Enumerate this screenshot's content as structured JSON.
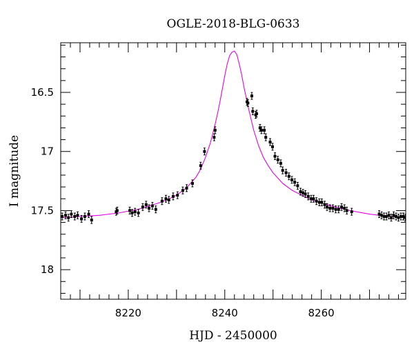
{
  "chart_data": {
    "type": "scatter",
    "title": "OGLE-2018-BLG-0633",
    "xlabel": "HJD - 2450000",
    "ylabel": "I magnitude",
    "xlim": [
      8206,
      8277.5
    ],
    "ylim": [
      18.25,
      16.08
    ],
    "y_inverted": true,
    "grid": false,
    "xticks": [
      8220,
      8240,
      8260
    ],
    "yticks": [
      16.5,
      17,
      17.5,
      18
    ],
    "ytick_labels": [
      "16.5",
      "17",
      "17.5",
      "18"
    ],
    "colors": {
      "points": "#000000",
      "model": "#e600e6",
      "axes": "#000000"
    },
    "series": [
      {
        "kind": "points",
        "x": [
          8206.3,
          8207.0,
          8207.6,
          8208.2,
          8208.9,
          8209.5,
          8210.3,
          8211.0,
          8211.8,
          8212.4,
          8217.5,
          8217.7,
          8220.3,
          8220.8,
          8221.4,
          8222.1,
          8223.0,
          8223.7,
          8224.3,
          8225.0,
          8225.7,
          8227.0,
          8227.8,
          8228.4,
          8229.3,
          8230.2,
          8231.3,
          8232.1,
          8233.3,
          8235.0,
          8235.8,
          8237.8,
          8238.0,
          8244.6,
          8244.8,
          8245.6,
          8245.8,
          8246.4,
          8246.6,
          8247.3,
          8247.6,
          8248.2,
          8248.5,
          8249.4,
          8249.9,
          8250.4,
          8251.0,
          8251.6,
          8252.0,
          8252.7,
          8253.3,
          8253.9,
          8254.5,
          8255.1,
          8255.7,
          8256.2,
          8256.7,
          8257.3,
          8257.9,
          8258.4,
          8259.0,
          8259.6,
          8260.1,
          8260.7,
          8261.2,
          8261.8,
          8262.4,
          8263.0,
          8263.6,
          8264.2,
          8264.8,
          8265.3,
          8266.3,
          8272.0,
          8272.5,
          8273.0,
          8273.5,
          8274.0,
          8274.5,
          8275.0,
          8275.5,
          8276.0,
          8276.5,
          8277.0,
          8277.4
        ],
        "y": [
          17.55,
          17.54,
          17.56,
          17.53,
          17.55,
          17.54,
          17.57,
          17.55,
          17.53,
          17.58,
          17.51,
          17.5,
          17.5,
          17.52,
          17.51,
          17.52,
          17.47,
          17.45,
          17.48,
          17.46,
          17.49,
          17.42,
          17.4,
          17.41,
          17.38,
          17.37,
          17.33,
          17.31,
          17.27,
          17.12,
          17.0,
          16.88,
          16.82,
          16.58,
          16.59,
          16.53,
          16.66,
          16.69,
          16.68,
          16.8,
          16.82,
          16.82,
          16.88,
          16.92,
          16.96,
          17.04,
          17.07,
          17.1,
          17.16,
          17.18,
          17.21,
          17.24,
          17.26,
          17.29,
          17.34,
          17.35,
          17.36,
          17.38,
          17.4,
          17.4,
          17.42,
          17.43,
          17.43,
          17.45,
          17.47,
          17.48,
          17.48,
          17.49,
          17.49,
          17.47,
          17.48,
          17.5,
          17.51,
          17.53,
          17.54,
          17.55,
          17.55,
          17.54,
          17.56,
          17.54,
          17.55,
          17.56,
          17.55,
          17.55,
          17.56
        ]
      },
      {
        "kind": "model",
        "x": [
          8206,
          8210,
          8214,
          8218,
          8222,
          8226,
          8228,
          8230,
          8232,
          8234,
          8235,
          8236,
          8237,
          8238,
          8238.5,
          8239,
          8239.5,
          8240,
          8240.5,
          8241,
          8241.5,
          8242,
          8242.5,
          8243,
          8243.5,
          8244,
          8245,
          8246,
          8247,
          8248,
          8249,
          8250,
          8252,
          8254,
          8256,
          8258,
          8262,
          8266,
          8270,
          8274,
          8277.5
        ],
        "y": [
          17.56,
          17.55,
          17.54,
          17.52,
          17.49,
          17.44,
          17.41,
          17.37,
          17.31,
          17.22,
          17.15,
          17.05,
          16.93,
          16.77,
          16.68,
          16.58,
          16.47,
          16.36,
          16.26,
          16.19,
          16.16,
          16.15,
          16.18,
          16.26,
          16.35,
          16.46,
          16.65,
          16.82,
          16.95,
          17.05,
          17.12,
          17.18,
          17.27,
          17.33,
          17.37,
          17.41,
          17.46,
          17.5,
          17.53,
          17.55,
          17.56
        ]
      }
    ]
  }
}
